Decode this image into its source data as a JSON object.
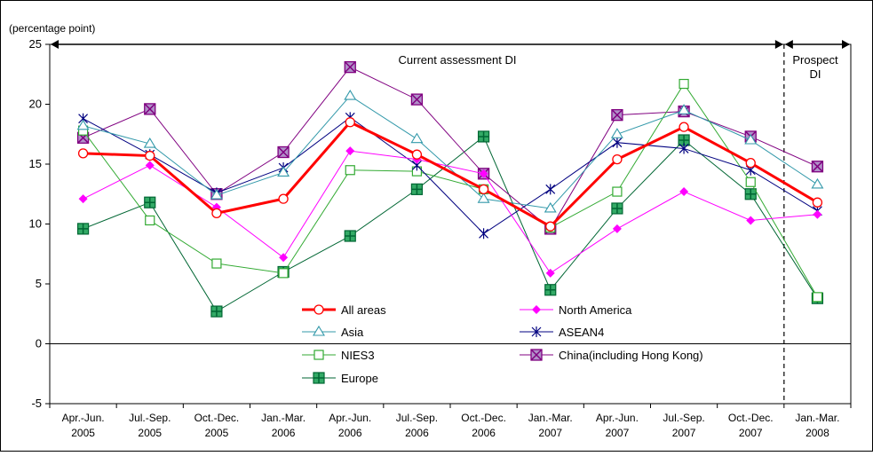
{
  "chart_data": {
    "type": "line",
    "unit_label": "(percentage point)",
    "annotations": {
      "current": "Current assessment DI",
      "prospect_line1": "Prospect",
      "prospect_line2": "DI"
    },
    "categories": [
      [
        "Apr.-Jun.",
        "2005"
      ],
      [
        "Jul.-Sep.",
        "2005"
      ],
      [
        "Oct.-Dec.",
        "2005"
      ],
      [
        "Jan.-Mar.",
        "2006"
      ],
      [
        "Apr.-Jun.",
        "2006"
      ],
      [
        "Jul.-Sep.",
        "2006"
      ],
      [
        "Oct.-Dec.",
        "2006"
      ],
      [
        "Jan.-Mar.",
        "2007"
      ],
      [
        "Apr.-Jun.",
        "2007"
      ],
      [
        "Jul.-Sep.",
        "2007"
      ],
      [
        "Oct.-Dec.",
        "2007"
      ],
      [
        "Jan.-Mar.",
        "2008"
      ]
    ],
    "ylim": [
      -5,
      25
    ],
    "yticks": [
      -5,
      0,
      5,
      10,
      15,
      20,
      25
    ],
    "grid": false,
    "legend_placement": "center",
    "series": [
      {
        "name": "All areas",
        "color": "#ff0000",
        "marker": "circle",
        "width": 3,
        "values": [
          15.9,
          15.7,
          10.9,
          12.1,
          18.5,
          15.8,
          12.9,
          9.8,
          15.4,
          18.1,
          15.1,
          11.8
        ]
      },
      {
        "name": "North America",
        "color": "#ff00ff",
        "marker": "diamond",
        "width": 1,
        "values": [
          12.1,
          14.9,
          11.4,
          7.2,
          16.1,
          15.4,
          14.2,
          5.9,
          9.6,
          12.7,
          10.3,
          10.8
        ]
      },
      {
        "name": "Asia",
        "color": "#3399aa",
        "marker": "triangle",
        "width": 1,
        "values": [
          18.2,
          16.7,
          12.4,
          14.3,
          20.7,
          17.1,
          12.1,
          11.3,
          17.5,
          19.5,
          17.0,
          13.3
        ]
      },
      {
        "name": "ASEAN4",
        "color": "#000080",
        "marker": "asterisk",
        "width": 1,
        "values": [
          18.8,
          15.8,
          12.6,
          14.7,
          18.9,
          14.9,
          9.2,
          12.9,
          16.8,
          16.3,
          14.5,
          11.1
        ]
      },
      {
        "name": "NIES3",
        "color": "#33aa33",
        "marker": "square-open",
        "width": 1,
        "values": [
          17.8,
          10.3,
          6.7,
          5.9,
          14.5,
          14.4,
          12.9,
          9.7,
          12.7,
          21.7,
          13.5,
          3.9
        ]
      },
      {
        "name": "China(including Hong Kong)",
        "color": "#800080",
        "marker": "square-x",
        "width": 1,
        "values": [
          17.2,
          19.6,
          12.5,
          16.0,
          23.1,
          20.4,
          14.2,
          9.6,
          19.1,
          19.4,
          17.3,
          14.8
        ]
      },
      {
        "name": "Europe",
        "color": "#006633",
        "marker": "square-plus",
        "width": 1,
        "values": [
          9.6,
          11.8,
          2.7,
          6.0,
          9.0,
          12.9,
          17.3,
          4.5,
          11.3,
          17.0,
          12.5,
          3.8
        ]
      }
    ]
  }
}
